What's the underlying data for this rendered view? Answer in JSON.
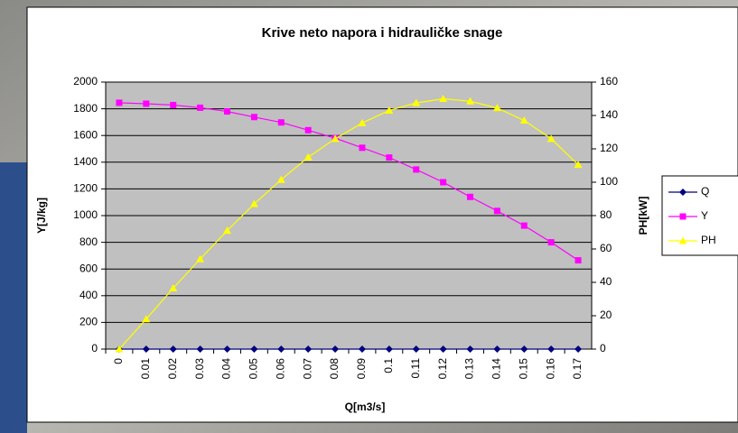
{
  "chart_data": {
    "type": "line",
    "title": "Krive neto napora i hidrauličke snage",
    "x_label": "Q[m3/s]",
    "y_label": "Y[J/kg]",
    "y2_label": "PH[kW]",
    "categories": [
      "0",
      "0.01",
      "0.02",
      "0.03",
      "0.04",
      "0.05",
      "0.06",
      "0.07",
      "0.08",
      "0.09",
      "0.1",
      "0.11",
      "0.12",
      "0.13",
      "0.14",
      "0.15",
      "0.16",
      "0.17"
    ],
    "series": [
      {
        "name": "Q",
        "color": "#000080",
        "marker": "diamond",
        "axis": "y",
        "values": [
          0,
          0.01,
          0.02,
          0.03,
          0.04,
          0.05,
          0.06,
          0.07,
          0.08,
          0.09,
          0.1,
          0.11,
          0.12,
          0.13,
          0.14,
          0.15,
          0.16,
          0.17
        ]
      },
      {
        "name": "Y",
        "color": "#ff00ff",
        "marker": "square",
        "axis": "y",
        "values": [
          1845,
          1838,
          1828,
          1808,
          1780,
          1738,
          1698,
          1640,
          1580,
          1508,
          1435,
          1345,
          1250,
          1140,
          1035,
          925,
          800,
          665
        ]
      },
      {
        "name": "PH",
        "color": "#ffff00",
        "marker": "triangle",
        "axis": "y2",
        "values": [
          0,
          18,
          36.5,
          54,
          71,
          87,
          101.5,
          115,
          126,
          135.5,
          143,
          147.5,
          150,
          148.5,
          144.5,
          137,
          126,
          110.5
        ]
      }
    ],
    "ylim": [
      0,
      2000
    ],
    "yticks": [
      0,
      200,
      400,
      600,
      800,
      1000,
      1200,
      1400,
      1600,
      1800,
      2000
    ],
    "y2lim": [
      0,
      160
    ],
    "y2ticks": [
      0,
      20,
      40,
      60,
      80,
      100,
      120,
      140,
      160
    ],
    "grid": true,
    "legend": "right"
  }
}
